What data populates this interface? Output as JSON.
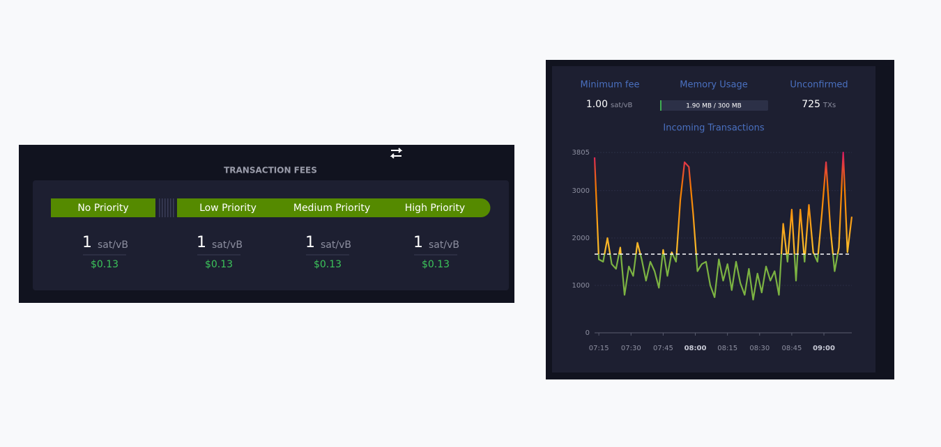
{
  "fees": {
    "title": "TRANSACTION FEES",
    "tiers": [
      {
        "name": "No Priority",
        "rate": "1",
        "unit": "sat/vB",
        "usd": "$0.13"
      },
      {
        "name": "Low Priority",
        "rate": "1",
        "unit": "sat/vB",
        "usd": "$0.13"
      },
      {
        "name": "Medium Priority",
        "rate": "1",
        "unit": "sat/vB",
        "usd": "$0.13"
      },
      {
        "name": "High Priority",
        "rate": "1",
        "unit": "sat/vB",
        "usd": "$0.13"
      }
    ]
  },
  "stats": {
    "minimum_fee": {
      "label": "Minimum fee",
      "value": "1.00",
      "unit": "sat/vB"
    },
    "memory_usage": {
      "label": "Memory Usage",
      "text": "1.90 MB / 300 MB"
    },
    "unconfirmed": {
      "label": "Unconfirmed",
      "value": "725",
      "unit": "TXs"
    }
  },
  "chart_data": {
    "type": "line",
    "title": "Incoming Transactions",
    "x": [
      "07:13",
      "07:15",
      "07:17",
      "07:19",
      "07:21",
      "07:23",
      "07:25",
      "07:27",
      "07:29",
      "07:31",
      "07:33",
      "07:35",
      "07:37",
      "07:39",
      "07:41",
      "07:43",
      "07:45",
      "07:47",
      "07:49",
      "07:51",
      "07:53",
      "07:55",
      "07:57",
      "07:59",
      "08:01",
      "08:03",
      "08:05",
      "08:07",
      "08:09",
      "08:11",
      "08:13",
      "08:15",
      "08:17",
      "08:19",
      "08:21",
      "08:23",
      "08:25",
      "08:27",
      "08:29",
      "08:31",
      "08:33",
      "08:35",
      "08:37",
      "08:39",
      "08:41",
      "08:43",
      "08:45",
      "08:47",
      "08:49",
      "08:51",
      "08:53",
      "08:55",
      "08:57",
      "08:59",
      "09:01",
      "09:03",
      "09:05",
      "09:07",
      "09:09",
      "09:11",
      "09:13"
    ],
    "series": [
      {
        "name": "Incoming Transactions",
        "colors": [
          "#7cb342",
          "#fbc02d",
          "#f57c00",
          "#d81b60"
        ],
        "values": [
          3700,
          1550,
          1500,
          2000,
          1450,
          1350,
          1800,
          800,
          1400,
          1200,
          1900,
          1550,
          1100,
          1500,
          1300,
          950,
          1750,
          1200,
          1700,
          1500,
          2800,
          3600,
          3500,
          2500,
          1300,
          1450,
          1500,
          1000,
          750,
          1550,
          1100,
          1450,
          900,
          1500,
          1050,
          800,
          1350,
          700,
          1250,
          850,
          1400,
          1100,
          1300,
          800,
          2300,
          1500,
          2600,
          1100,
          2600,
          1500,
          2700,
          1700,
          1500,
          2500,
          3600,
          2200,
          1300,
          1800,
          3805,
          1700,
          2450
        ]
      }
    ],
    "threshold": 1660,
    "xlim": [
      "07:13",
      "09:13"
    ],
    "xticks": [
      "07:15",
      "07:30",
      "07:45",
      "08:00",
      "08:15",
      "08:30",
      "08:45",
      "09:00"
    ],
    "ylim": [
      0,
      3805
    ],
    "yticks": [
      0,
      1000,
      2000,
      3000,
      3805
    ],
    "grid": true
  }
}
